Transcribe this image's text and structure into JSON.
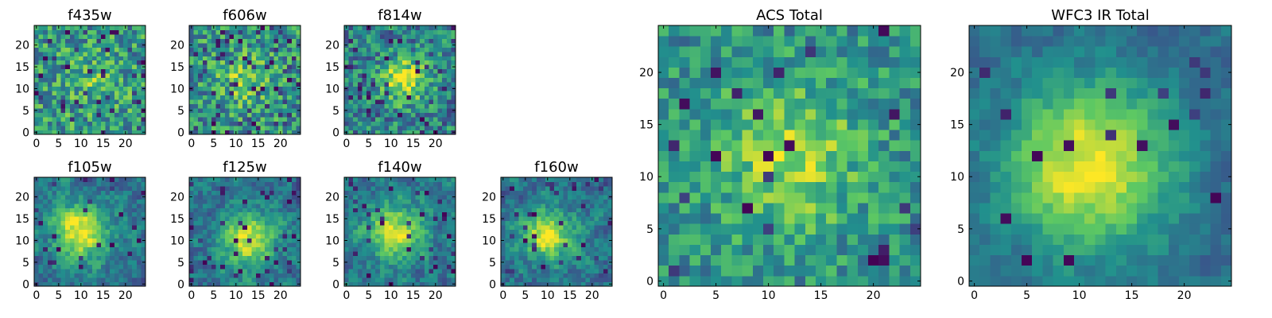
{
  "figure": {
    "colormap": [
      "#440154",
      "#3b528b",
      "#21908d",
      "#5dc863",
      "#fde725"
    ],
    "panels": [
      {
        "id": "f435w",
        "title": "f435w",
        "xticks": [
          "0",
          "5",
          "10",
          "15",
          "20"
        ],
        "yticks": [
          "0",
          "5",
          "10",
          "15",
          "20"
        ],
        "grid": 25,
        "seed": 11,
        "blob": {
          "cx": 13,
          "cy": 12,
          "sigma": 4.0,
          "amp": 0.15
        },
        "noise": 0.55,
        "base": 0.55,
        "blur": 0,
        "dark_frac": 0.08
      },
      {
        "id": "f606w",
        "title": "f606w",
        "xticks": [
          "0",
          "5",
          "10",
          "15",
          "20"
        ],
        "yticks": [
          "0",
          "5",
          "10",
          "15",
          "20"
        ],
        "grid": 25,
        "seed": 23,
        "blob": {
          "cx": 12,
          "cy": 12,
          "sigma": 4.0,
          "amp": 0.25
        },
        "noise": 0.55,
        "base": 0.52,
        "blur": 0,
        "dark_frac": 0.08
      },
      {
        "id": "f814w",
        "title": "f814w",
        "xticks": [
          "0",
          "5",
          "10",
          "15",
          "20"
        ],
        "yticks": [
          "0",
          "5",
          "10",
          "15",
          "20"
        ],
        "grid": 25,
        "seed": 37,
        "blob": {
          "cx": 13,
          "cy": 12,
          "sigma": 3.5,
          "amp": 0.5
        },
        "noise": 0.5,
        "base": 0.45,
        "blur": 0,
        "dark_frac": 0.07
      },
      {
        "id": "f105w",
        "title": "f105w",
        "xticks": [
          "0",
          "5",
          "10",
          "15",
          "20"
        ],
        "yticks": [
          "0",
          "5",
          "10",
          "15",
          "20"
        ],
        "grid": 25,
        "seed": 41,
        "blob": {
          "cx": 10,
          "cy": 12,
          "sigma": 4.5,
          "amp": 0.6
        },
        "noise": 0.5,
        "base": 0.38,
        "blur": 1,
        "dark_frac": 0.05
      },
      {
        "id": "f125w",
        "title": "f125w",
        "xticks": [
          "0",
          "5",
          "10",
          "15",
          "20"
        ],
        "yticks": [
          "0",
          "5",
          "10",
          "15",
          "20"
        ],
        "grid": 25,
        "seed": 53,
        "blob": {
          "cx": 13,
          "cy": 10,
          "sigma": 4.5,
          "amp": 0.55
        },
        "noise": 0.5,
        "base": 0.38,
        "blur": 1,
        "dark_frac": 0.05
      },
      {
        "id": "f140w",
        "title": "f140w",
        "xticks": [
          "0",
          "5",
          "10",
          "15",
          "20"
        ],
        "yticks": [
          "0",
          "5",
          "10",
          "15",
          "20"
        ],
        "grid": 25,
        "seed": 67,
        "blob": {
          "cx": 11,
          "cy": 12,
          "sigma": 4.5,
          "amp": 0.5
        },
        "noise": 0.5,
        "base": 0.4,
        "blur": 1,
        "dark_frac": 0.05
      },
      {
        "id": "f160w",
        "title": "f160w",
        "xticks": [
          "0",
          "5",
          "10",
          "15",
          "20"
        ],
        "yticks": [
          "0",
          "5",
          "10",
          "15",
          "20"
        ],
        "grid": 25,
        "seed": 79,
        "blob": {
          "cx": 10,
          "cy": 11,
          "sigma": 4.0,
          "amp": 0.6
        },
        "noise": 0.5,
        "base": 0.38,
        "blur": 1,
        "dark_frac": 0.05
      },
      {
        "id": "acs_total",
        "title": "ACS Total",
        "xticks": [
          "0",
          "5",
          "10",
          "15",
          "20"
        ],
        "yticks": [
          "0",
          "5",
          "10",
          "15",
          "20"
        ],
        "grid": 25,
        "seed": 97,
        "blob": {
          "cx": 12,
          "cy": 12,
          "sigma": 5.0,
          "amp": 0.35
        },
        "noise": 0.4,
        "base": 0.5,
        "blur": 0,
        "dark_frac": 0.04
      },
      {
        "id": "wfc3_ir_total",
        "title": "WFC3 IR Total",
        "xticks": [
          "0",
          "5",
          "10",
          "15",
          "20"
        ],
        "yticks": [
          "0",
          "5",
          "10",
          "15",
          "20"
        ],
        "grid": 25,
        "seed": 113,
        "blob": {
          "cx": 11,
          "cy": 11,
          "sigma": 5.5,
          "amp": 0.65
        },
        "noise": 0.3,
        "base": 0.35,
        "blur": 1,
        "dark_frac": 0.04
      }
    ]
  },
  "chart_data": [
    {
      "type": "heatmap",
      "title": "f435w",
      "xlim": [
        0,
        24
      ],
      "ylim": [
        0,
        24
      ],
      "xticks": [
        0,
        5,
        10,
        15,
        20
      ],
      "yticks": [
        0,
        5,
        10,
        15,
        20
      ],
      "size": [
        25,
        25
      ],
      "colormap": "viridis"
    },
    {
      "type": "heatmap",
      "title": "f606w",
      "xlim": [
        0,
        24
      ],
      "ylim": [
        0,
        24
      ],
      "xticks": [
        0,
        5,
        10,
        15,
        20
      ],
      "yticks": [
        0,
        5,
        10,
        15,
        20
      ],
      "size": [
        25,
        25
      ],
      "colormap": "viridis"
    },
    {
      "type": "heatmap",
      "title": "f814w",
      "xlim": [
        0,
        24
      ],
      "ylim": [
        0,
        24
      ],
      "xticks": [
        0,
        5,
        10,
        15,
        20
      ],
      "yticks": [
        0,
        5,
        10,
        15,
        20
      ],
      "size": [
        25,
        25
      ],
      "colormap": "viridis"
    },
    {
      "type": "heatmap",
      "title": "f105w",
      "xlim": [
        0,
        24
      ],
      "ylim": [
        0,
        24
      ],
      "xticks": [
        0,
        5,
        10,
        15,
        20
      ],
      "yticks": [
        0,
        5,
        10,
        15,
        20
      ],
      "size": [
        25,
        25
      ],
      "colormap": "viridis"
    },
    {
      "type": "heatmap",
      "title": "f125w",
      "xlim": [
        0,
        24
      ],
      "ylim": [
        0,
        24
      ],
      "xticks": [
        0,
        5,
        10,
        15,
        20
      ],
      "yticks": [
        0,
        5,
        10,
        15,
        20
      ],
      "size": [
        25,
        25
      ],
      "colormap": "viridis"
    },
    {
      "type": "heatmap",
      "title": "f140w",
      "xlim": [
        0,
        24
      ],
      "ylim": [
        0,
        24
      ],
      "xticks": [
        0,
        5,
        10,
        15,
        20
      ],
      "yticks": [
        0,
        5,
        10,
        15,
        20
      ],
      "size": [
        25,
        25
      ],
      "colormap": "viridis"
    },
    {
      "type": "heatmap",
      "title": "f160w",
      "xlim": [
        0,
        24
      ],
      "ylim": [
        0,
        24
      ],
      "xticks": [
        0,
        5,
        10,
        15,
        20
      ],
      "yticks": [
        0,
        5,
        10,
        15,
        20
      ],
      "size": [
        25,
        25
      ],
      "colormap": "viridis"
    },
    {
      "type": "heatmap",
      "title": "ACS Total",
      "xlim": [
        0,
        24
      ],
      "ylim": [
        0,
        24
      ],
      "xticks": [
        0,
        5,
        10,
        15,
        20
      ],
      "yticks": [
        0,
        5,
        10,
        15,
        20
      ],
      "size": [
        25,
        25
      ],
      "colormap": "viridis"
    },
    {
      "type": "heatmap",
      "title": "WFC3 IR Total",
      "xlim": [
        0,
        24
      ],
      "ylim": [
        0,
        24
      ],
      "xticks": [
        0,
        5,
        10,
        15,
        20
      ],
      "yticks": [
        0,
        5,
        10,
        15,
        20
      ],
      "size": [
        25,
        25
      ],
      "colormap": "viridis"
    }
  ]
}
